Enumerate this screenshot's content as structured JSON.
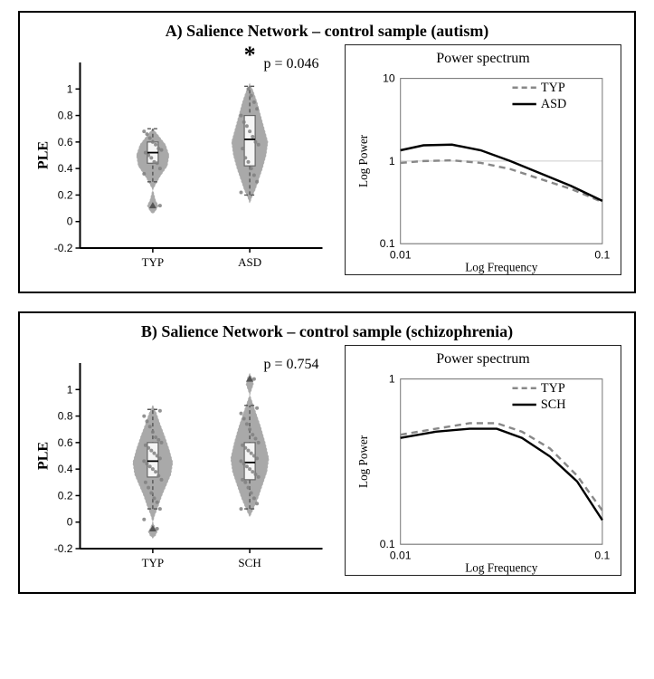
{
  "panels": [
    {
      "id": "A",
      "title": "A) Salience Network – control sample (autism)",
      "violin": {
        "ylabel": "PLE",
        "ylim": [
          -0.2,
          1.2
        ],
        "yticks": [
          -0.2,
          0,
          0.2,
          0.4,
          0.6,
          0.8,
          1
        ],
        "groups": [
          "TYP",
          "ASD"
        ],
        "sig_star": "*",
        "pval_text": "p = 0.046",
        "series_color": "#a9a9a9",
        "box_stroke": "#666666",
        "whisker_stroke": "#555555",
        "dot_color": "#808080",
        "data": {
          "TYP": {
            "median": 0.52,
            "q1": 0.44,
            "q3": 0.6,
            "wlow": 0.3,
            "whigh": 0.7,
            "outlier": 0.12,
            "dots": [
              0.36,
              0.4,
              0.44,
              0.45,
              0.48,
              0.5,
              0.52,
              0.54,
              0.55,
              0.58,
              0.6,
              0.63,
              0.66,
              0.68,
              0.12
            ],
            "violin_outline": [
              [
                0,
                0.7
              ],
              [
                6,
                0.65
              ],
              [
                14,
                0.58
              ],
              [
                18,
                0.5
              ],
              [
                16,
                0.42
              ],
              [
                8,
                0.34
              ],
              [
                3,
                0.28
              ],
              [
                0,
                0.24
              ],
              [
                3,
                0.16
              ],
              [
                6,
                0.12
              ],
              [
                3,
                0.08
              ],
              [
                0,
                0.06
              ]
            ]
          },
          "ASD": {
            "median": 0.62,
            "q1": 0.42,
            "q3": 0.8,
            "wlow": 0.2,
            "whigh": 1.02,
            "dots": [
              0.22,
              0.3,
              0.35,
              0.4,
              0.45,
              0.48,
              0.55,
              0.58,
              0.6,
              0.64,
              0.68,
              0.72,
              0.75,
              0.8,
              0.85,
              0.9,
              0.95,
              1.0
            ],
            "violin_outline": [
              [
                0,
                1.04
              ],
              [
                4,
                0.98
              ],
              [
                8,
                0.9
              ],
              [
                12,
                0.8
              ],
              [
                16,
                0.7
              ],
              [
                20,
                0.6
              ],
              [
                18,
                0.5
              ],
              [
                14,
                0.4
              ],
              [
                10,
                0.32
              ],
              [
                6,
                0.24
              ],
              [
                2,
                0.18
              ],
              [
                0,
                0.14
              ]
            ]
          }
        }
      },
      "spectrum": {
        "title": "Power spectrum",
        "xlabel": "Log Frequency",
        "ylabel": "Log Power",
        "xlim_log": [
          0.01,
          0.1
        ],
        "ylim_log": [
          0.1,
          10
        ],
        "xticks": [
          0.01,
          0.1
        ],
        "yticks": [
          0.1,
          1,
          10
        ],
        "grid_color": "#cccccc",
        "series": [
          {
            "label": "TYP",
            "style": "dashed",
            "color": "#888888",
            "width": 2.4,
            "points": [
              [
                0.01,
                0.95
              ],
              [
                0.013,
                1.0
              ],
              [
                0.018,
                1.02
              ],
              [
                0.025,
                0.95
              ],
              [
                0.035,
                0.8
              ],
              [
                0.05,
                0.6
              ],
              [
                0.07,
                0.46
              ],
              [
                0.1,
                0.32
              ]
            ]
          },
          {
            "label": "ASD",
            "style": "solid",
            "color": "#000000",
            "width": 2.4,
            "points": [
              [
                0.01,
                1.35
              ],
              [
                0.013,
                1.55
              ],
              [
                0.018,
                1.58
              ],
              [
                0.025,
                1.35
              ],
              [
                0.035,
                1.0
              ],
              [
                0.05,
                0.7
              ],
              [
                0.07,
                0.5
              ],
              [
                0.1,
                0.33
              ]
            ]
          }
        ],
        "legend_labels": [
          "TYP",
          "ASD"
        ]
      }
    },
    {
      "id": "B",
      "title": "B) Salience Network – control sample (schizophrenia)",
      "violin": {
        "ylabel": "PLE",
        "ylim": [
          -0.2,
          1.2
        ],
        "yticks": [
          -0.2,
          0,
          0.2,
          0.4,
          0.6,
          0.8,
          1
        ],
        "groups": [
          "TYP",
          "SCH"
        ],
        "sig_star": "",
        "pval_text": "p = 0.754",
        "series_color": "#a9a9a9",
        "box_stroke": "#666666",
        "whisker_stroke": "#555555",
        "dot_color": "#808080",
        "data": {
          "TYP": {
            "median": 0.46,
            "q1": 0.34,
            "q3": 0.6,
            "wlow": 0.1,
            "whigh": 0.85,
            "outlier": -0.05,
            "dots": [
              0.02,
              0.1,
              0.15,
              0.18,
              0.22,
              0.26,
              0.3,
              0.32,
              0.35,
              0.38,
              0.4,
              0.42,
              0.44,
              0.46,
              0.48,
              0.5,
              0.52,
              0.54,
              0.56,
              0.58,
              0.6,
              0.62,
              0.64,
              0.68,
              0.72,
              0.76,
              0.8,
              0.84,
              -0.05
            ],
            "violin_outline": [
              [
                0,
                0.88
              ],
              [
                4,
                0.82
              ],
              [
                8,
                0.74
              ],
              [
                13,
                0.65
              ],
              [
                18,
                0.55
              ],
              [
                22,
                0.45
              ],
              [
                20,
                0.36
              ],
              [
                15,
                0.28
              ],
              [
                10,
                0.2
              ],
              [
                6,
                0.12
              ],
              [
                2,
                0.05
              ],
              [
                0,
                0.0
              ],
              [
                3,
                -0.05
              ],
              [
                5,
                -0.07
              ],
              [
                3,
                -0.1
              ],
              [
                0,
                -0.12
              ]
            ]
          },
          "SCH": {
            "median": 0.45,
            "q1": 0.32,
            "q3": 0.6,
            "wlow": 0.1,
            "whigh": 0.88,
            "outlier": 1.08,
            "dots": [
              0.1,
              0.14,
              0.18,
              0.22,
              0.26,
              0.3,
              0.32,
              0.34,
              0.36,
              0.38,
              0.4,
              0.42,
              0.44,
              0.46,
              0.48,
              0.5,
              0.52,
              0.54,
              0.56,
              0.58,
              0.6,
              0.63,
              0.66,
              0.7,
              0.74,
              0.78,
              0.82,
              0.86,
              1.08
            ],
            "violin_outline": [
              [
                0,
                1.12
              ],
              [
                3,
                1.08
              ],
              [
                4,
                1.04
              ],
              [
                2,
                1.0
              ],
              [
                0,
                0.96
              ],
              [
                3,
                0.9
              ],
              [
                7,
                0.82
              ],
              [
                12,
                0.72
              ],
              [
                17,
                0.6
              ],
              [
                21,
                0.48
              ],
              [
                19,
                0.38
              ],
              [
                14,
                0.28
              ],
              [
                9,
                0.18
              ],
              [
                4,
                0.1
              ],
              [
                0,
                0.04
              ]
            ]
          }
        }
      },
      "spectrum": {
        "title": "Power spectrum",
        "xlabel": "Log Frequency",
        "ylabel": "Log Power",
        "xlim_log": [
          0.01,
          0.1
        ],
        "ylim_log": [
          0.1,
          1
        ],
        "xticks": [
          0.01,
          0.1
        ],
        "yticks": [
          0.1,
          1
        ],
        "grid_color": "#cccccc",
        "series": [
          {
            "label": "TYP",
            "style": "dashed",
            "color": "#888888",
            "width": 2.4,
            "points": [
              [
                0.01,
                0.46
              ],
              [
                0.015,
                0.5
              ],
              [
                0.022,
                0.54
              ],
              [
                0.03,
                0.54
              ],
              [
                0.04,
                0.48
              ],
              [
                0.055,
                0.38
              ],
              [
                0.075,
                0.26
              ],
              [
                0.1,
                0.16
              ]
            ]
          },
          {
            "label": "SCH",
            "style": "solid",
            "color": "#000000",
            "width": 2.4,
            "points": [
              [
                0.01,
                0.44
              ],
              [
                0.015,
                0.48
              ],
              [
                0.022,
                0.5
              ],
              [
                0.03,
                0.5
              ],
              [
                0.04,
                0.44
              ],
              [
                0.055,
                0.34
              ],
              [
                0.075,
                0.24
              ],
              [
                0.1,
                0.14
              ]
            ]
          }
        ],
        "legend_labels": [
          "TYP",
          "SCH"
        ]
      }
    }
  ]
}
